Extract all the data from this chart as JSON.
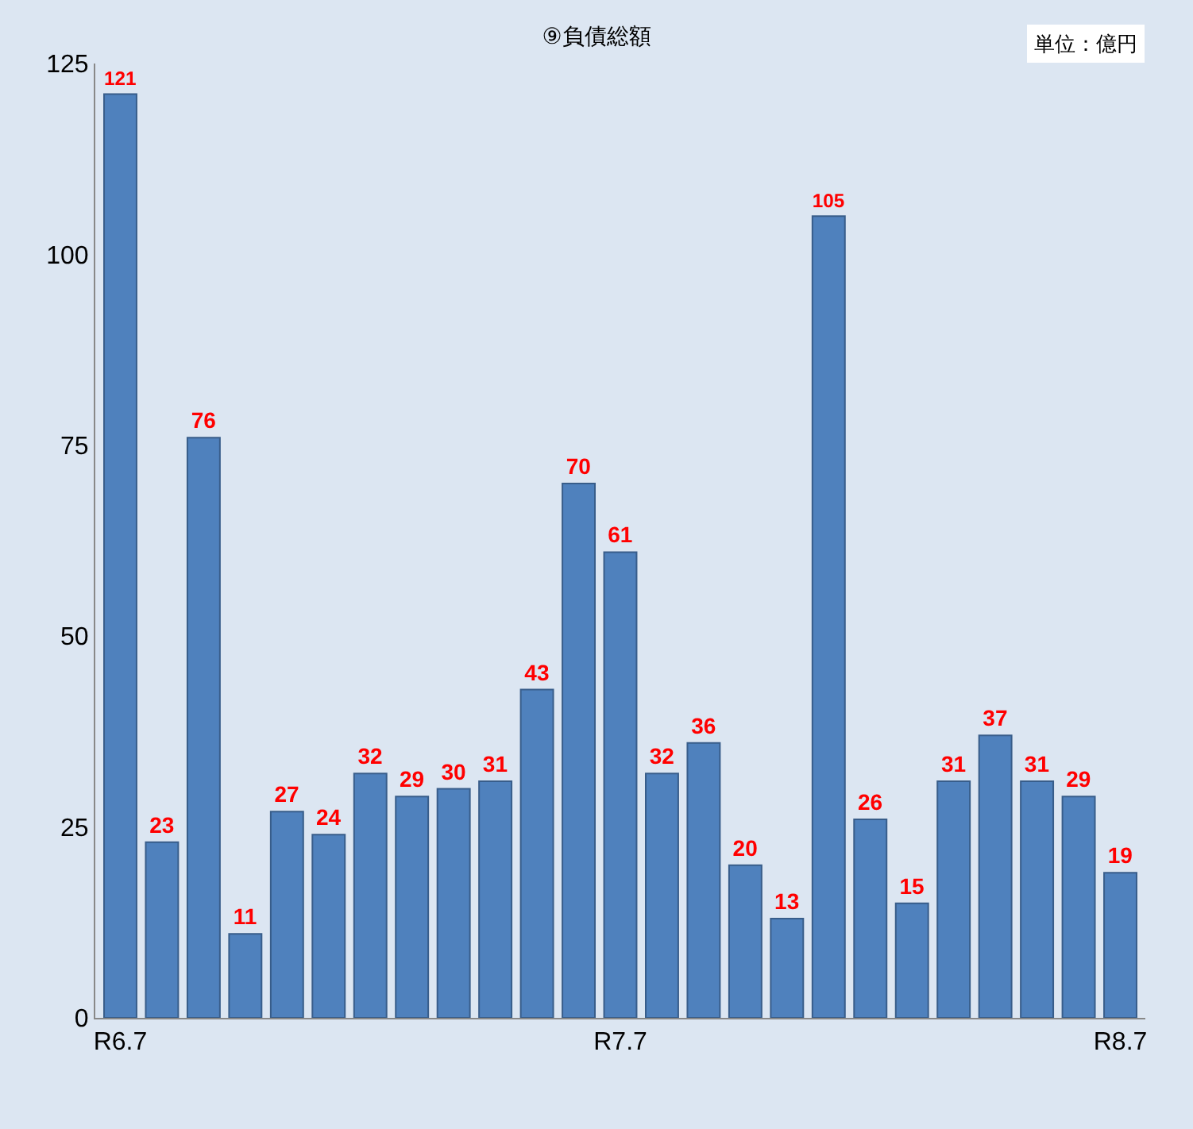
{
  "chart_data": {
    "type": "bar",
    "title": "⑨負債総額",
    "annotations": [
      "単位：億円"
    ],
    "categories": [
      "R6.7",
      null,
      null,
      null,
      null,
      null,
      null,
      null,
      null,
      null,
      null,
      null,
      "R7.7",
      null,
      null,
      null,
      null,
      null,
      null,
      null,
      null,
      null,
      null,
      null,
      "R8.7"
    ],
    "values": [
      121,
      23,
      76,
      11,
      27,
      24,
      32,
      29,
      30,
      31,
      43,
      70,
      61,
      32,
      36,
      20,
      13,
      105,
      26,
      15,
      31,
      37,
      31,
      29,
      19
    ],
    "color": "#4f81bd",
    "ylim": [
      0,
      125
    ],
    "yticks": [
      0,
      25,
      50,
      75,
      100,
      125
    ],
    "grid": false,
    "data_labels": true
  }
}
